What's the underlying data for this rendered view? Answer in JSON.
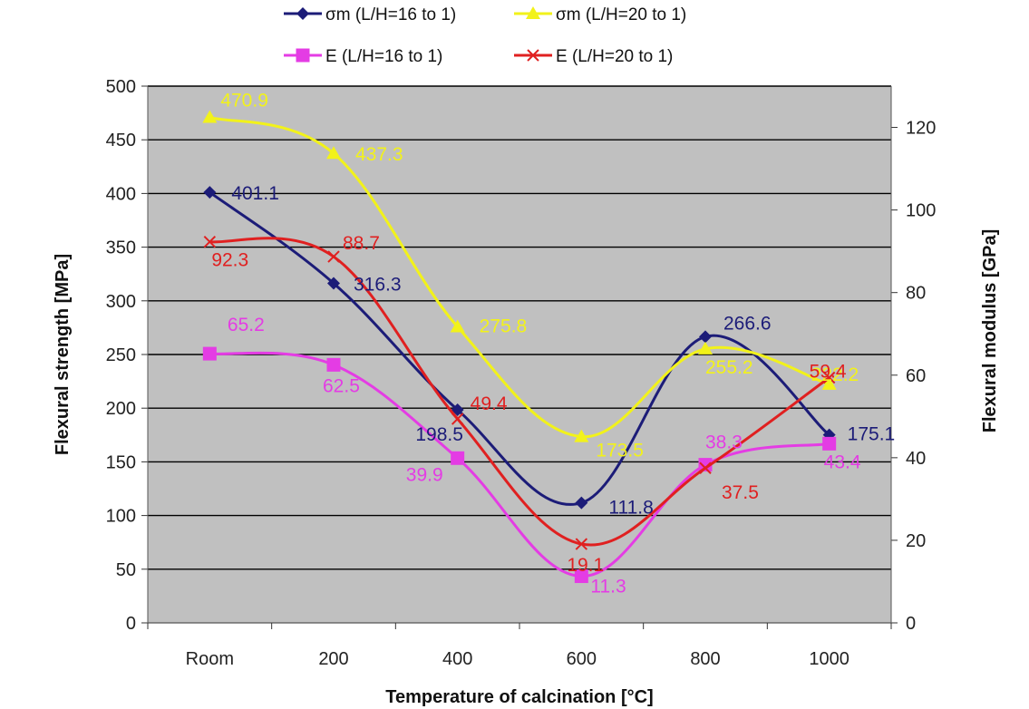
{
  "chart_data": {
    "type": "line",
    "categories": [
      "Room",
      "200",
      "400",
      "600",
      "800",
      "1000"
    ],
    "xlabel": "Temperature of calcination [°C]",
    "ylabel_left": "Flexural strength [MPa]",
    "ylabel_right": "Flexural modulus [GPa]",
    "ylim_left": [
      0,
      500
    ],
    "yticks_left": [
      0,
      50,
      100,
      150,
      200,
      250,
      300,
      350,
      400,
      450,
      500
    ],
    "ylim_right": [
      0,
      130
    ],
    "yticks_right": [
      0,
      20,
      40,
      60,
      80,
      100,
      120
    ],
    "grid": true,
    "legend_position": "top",
    "series": [
      {
        "name": "σm (L/H=16 to 1)",
        "axis": "left",
        "marker": "diamond",
        "color": "#1c1c78",
        "values": [
          401.1,
          316.3,
          198.5,
          111.8,
          266.6,
          175.1
        ],
        "labels": [
          "401.1",
          "316.3",
          "198.5",
          "111.8",
          "266.6",
          "175.1"
        ]
      },
      {
        "name": "σm (L/H=20 to 1)",
        "axis": "left",
        "marker": "triangle",
        "color": "#f2f21a",
        "values": [
          470.9,
          437.3,
          275.8,
          173.5,
          255.2,
          222.2
        ],
        "labels": [
          "470.9",
          "437.3",
          "275.8",
          "173.5",
          "255.2",
          "222.2"
        ]
      },
      {
        "name": "E (L/H=16 to 1)",
        "axis": "right",
        "marker": "square",
        "color": "#e43ce4",
        "values": [
          65.2,
          62.5,
          39.9,
          11.3,
          38.3,
          43.4
        ],
        "labels": [
          "65.2",
          "62.5",
          "39.9",
          "11.3",
          "38.3",
          "43.4"
        ]
      },
      {
        "name": "E  (L/H=20 to 1)",
        "axis": "right",
        "marker": "x",
        "color": "#e02020",
        "values": [
          92.3,
          88.7,
          49.4,
          19.1,
          37.5,
          59.4
        ],
        "labels": [
          "92.3",
          "88.7",
          "49.4",
          "19.1",
          "37.5",
          "59.4"
        ]
      }
    ]
  }
}
